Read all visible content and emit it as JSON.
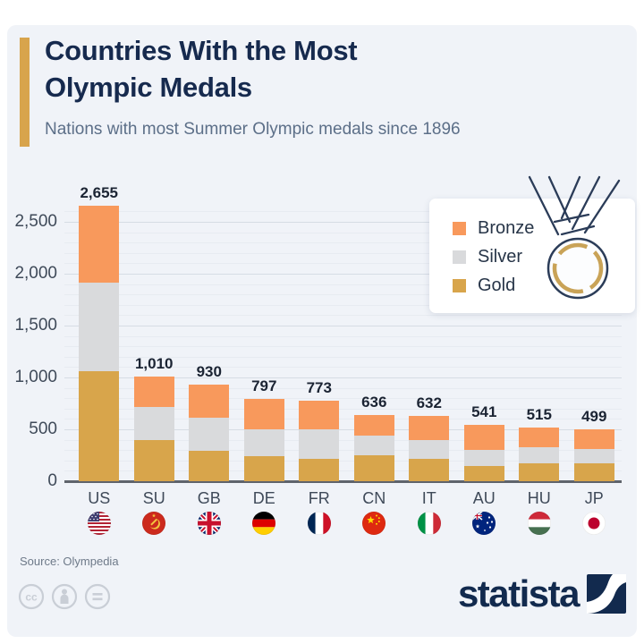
{
  "header": {
    "title_line1": "Countries With the Most",
    "title_line2": "Olympic Medals",
    "subtitle": "Nations with most Summer Olympic medals since 1896"
  },
  "chart_data": {
    "type": "bar",
    "stacked": true,
    "title": "Countries With the Most Olympic Medals",
    "xlabel": "",
    "ylabel": "",
    "grid": true,
    "legend_position": "top-right",
    "categories": [
      "US",
      "SU",
      "GB",
      "DE",
      "FR",
      "CN",
      "IT",
      "AU",
      "HU",
      "JP"
    ],
    "flag_codes": [
      "us",
      "su",
      "gb",
      "de",
      "fr",
      "cn",
      "it",
      "au",
      "hu",
      "jp"
    ],
    "flag_icons": [
      "flag-us-icon",
      "flag-su-icon",
      "flag-gb-icon",
      "flag-de-icon",
      "flag-fr-icon",
      "flag-cn-icon",
      "flag-it-icon",
      "flag-au-icon",
      "flag-hu-icon",
      "flag-jp-icon"
    ],
    "series": [
      {
        "name": "Gold",
        "values": [
          1065,
          395,
          296,
          240,
          215,
          248,
          212,
          150,
          175,
          170
        ]
      },
      {
        "name": "Silver",
        "values": [
          849,
          319,
          316,
          260,
          285,
          195,
          185,
          152,
          155,
          142
        ]
      },
      {
        "name": "Bronze",
        "values": [
          741,
          296,
          318,
          297,
          273,
          193,
          235,
          239,
          185,
          187
        ]
      }
    ],
    "totals": [
      2655,
      1010,
      930,
      797,
      773,
      636,
      632,
      541,
      515,
      499
    ],
    "total_labels": [
      "2,655",
      "1,010",
      "930",
      "797",
      "773",
      "636",
      "632",
      "541",
      "515",
      "499"
    ],
    "y_ticks": [
      {
        "value": 0,
        "label": "0"
      },
      {
        "value": 500,
        "label": "500"
      },
      {
        "value": 1000,
        "label": "1,000"
      },
      {
        "value": 1500,
        "label": "1,500"
      },
      {
        "value": 2000,
        "label": "2,000"
      },
      {
        "value": 2500,
        "label": "2,500"
      }
    ],
    "ylim": [
      0,
      2672
    ],
    "minor_grid_step": 100,
    "major_grid_step": 500
  },
  "legend": {
    "items": [
      {
        "label": "Bronze",
        "color": "#f8995c"
      },
      {
        "label": "Silver",
        "color": "#d9dadc"
      },
      {
        "label": "Gold",
        "color": "#d8a54b"
      }
    ]
  },
  "footer": {
    "source": "Source: Olympedia",
    "brand": "statista",
    "icons": [
      "cc-license-icon",
      "cc-attribution-icon",
      "cc-equal-icon",
      "statista-logo-icon"
    ]
  },
  "colors": {
    "bronze": "#f8995c",
    "silver": "#d9dadc",
    "gold": "#d8a54b",
    "panel_bg": "#f0f3f8",
    "title": "#162a4e",
    "subtitle": "#5c6f88",
    "accent_bar": "#d8a44c",
    "grid_major": "#d6dce4",
    "grid_minor": "#e7ebf1",
    "axis": "#5f646c",
    "tick_label": "#3f4a59",
    "value_label": "#1b2433",
    "category_label": "#3f4a59",
    "legend_text": "#273548",
    "source_text": "#6e7a89",
    "brand_navy": "#122a4e",
    "medal_outline": "#2b3c58",
    "medal_gold": "#c9a357"
  }
}
